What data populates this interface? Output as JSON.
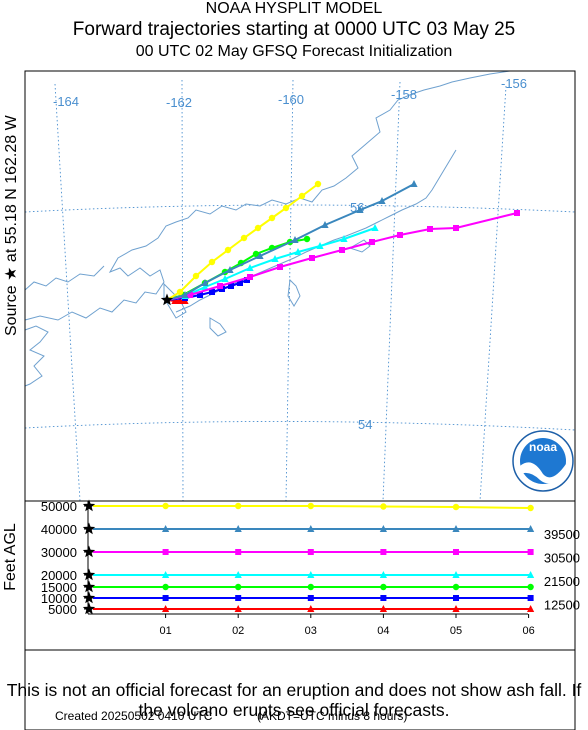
{
  "header": {
    "line1": "NOAA HYSPLIT MODEL",
    "line2": "Forward trajectories starting at 0000 UTC 03 May 25",
    "line3": "00 UTC 02 May     GFSQ  Forecast Initialization"
  },
  "source_label": "Source ★  at    55.18 N  162.28 W",
  "feet_label": "Feet AGL",
  "disclaimer": "This is not an official forecast for an eruption and does not show ash fall. If the volcano erupts see official forecasts.",
  "created": "Created 20250502 0410 UTC",
  "akdt": "(AKDT=UTC minus 8 hours)",
  "logo_text": "noaa",
  "map": {
    "lon_labels": [
      "-164",
      "-162",
      "-160",
      "-158",
      "-156"
    ],
    "lat_labels": [
      "56",
      "54"
    ],
    "grid_color": "#4a8fcf",
    "coast_color": "#6fa1cf"
  },
  "colors": {
    "5000": "#ff0000",
    "10000": "#0000ff",
    "15000": "#00ff00",
    "20000": "#00ffff",
    "30000": "#ff00ff",
    "40000": "#3a87bd",
    "50000": "#ffff00"
  },
  "chart_data": {
    "type": "line",
    "title": "Forward trajectories starting at 0000 UTC 03 May 25",
    "ylabel": "Feet AGL",
    "x_ticks": [
      "01",
      "02",
      "03",
      "04",
      "05",
      "06"
    ],
    "y_ticks_left": [
      "50000",
      "40000",
      "30000",
      "20000",
      "15000",
      "10000",
      "5000"
    ],
    "y_ticks_right": [
      "39500",
      "30500",
      "21500",
      "12500"
    ],
    "series": [
      {
        "height": 5000,
        "color": "#ff0000",
        "marker": "triangle",
        "heights": [
          5000,
          5000,
          5000,
          5000,
          5000,
          5000
        ]
      },
      {
        "height": 10000,
        "color": "#0000ff",
        "marker": "square",
        "heights": [
          10000,
          10000,
          10000,
          10000,
          10000,
          10000
        ]
      },
      {
        "height": 15000,
        "color": "#00ff00",
        "marker": "circle",
        "heights": [
          15000,
          15000,
          15000,
          15000,
          15000,
          15000
        ]
      },
      {
        "height": 20000,
        "color": "#00ffff",
        "marker": "triangle",
        "heights": [
          20000,
          20000,
          20000,
          20000,
          20000,
          20000
        ]
      },
      {
        "height": 30000,
        "color": "#ff00ff",
        "marker": "square",
        "heights": [
          30000,
          30000,
          30000,
          30000,
          30000,
          30000
        ]
      },
      {
        "height": 40000,
        "color": "#3a87bd",
        "marker": "triangle",
        "heights": [
          40000,
          40000,
          40000,
          40000,
          40000,
          40000
        ]
      },
      {
        "height": 50000,
        "color": "#ffff00",
        "marker": "circle",
        "heights": [
          50000,
          50000,
          50000,
          50000,
          49800,
          49600
        ]
      }
    ]
  }
}
